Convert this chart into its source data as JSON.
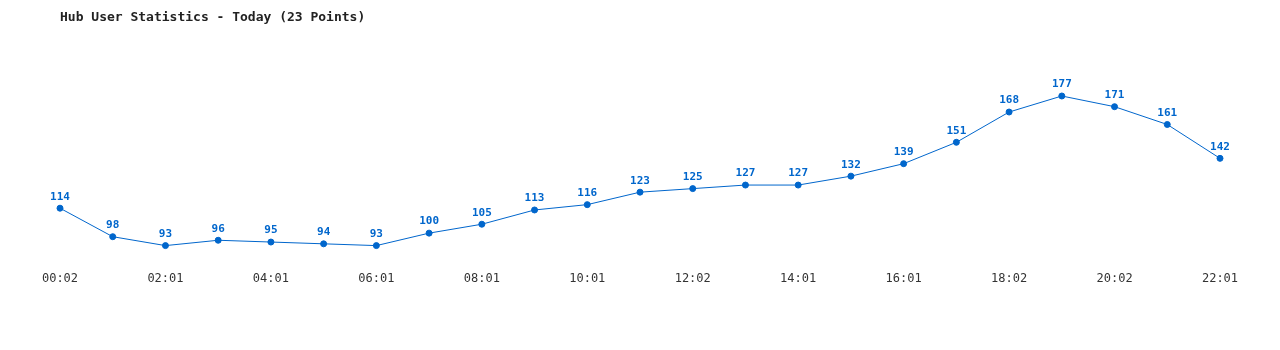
{
  "chart_data": {
    "type": "line",
    "title": "Hub User Statistics - Today (23 Points)",
    "categories": [
      "00:02",
      null,
      "02:01",
      null,
      "04:01",
      null,
      "06:01",
      null,
      "08:01",
      null,
      "10:01",
      null,
      "12:02",
      null,
      "14:01",
      null,
      "16:01",
      null,
      "18:02",
      null,
      "20:02",
      null,
      "22:01"
    ],
    "series": [
      {
        "color": "#0066cc",
        "values": [
          114,
          98,
          93,
          96,
          95,
          94,
          93,
          100,
          105,
          113,
          116,
          123,
          125,
          127,
          127,
          132,
          139,
          151,
          168,
          177,
          171,
          161,
          142
        ]
      }
    ],
    "data_labels": true,
    "marker": "circle",
    "line_style": "solid",
    "grid": false,
    "legend": false,
    "tick_labels": "x"
  }
}
